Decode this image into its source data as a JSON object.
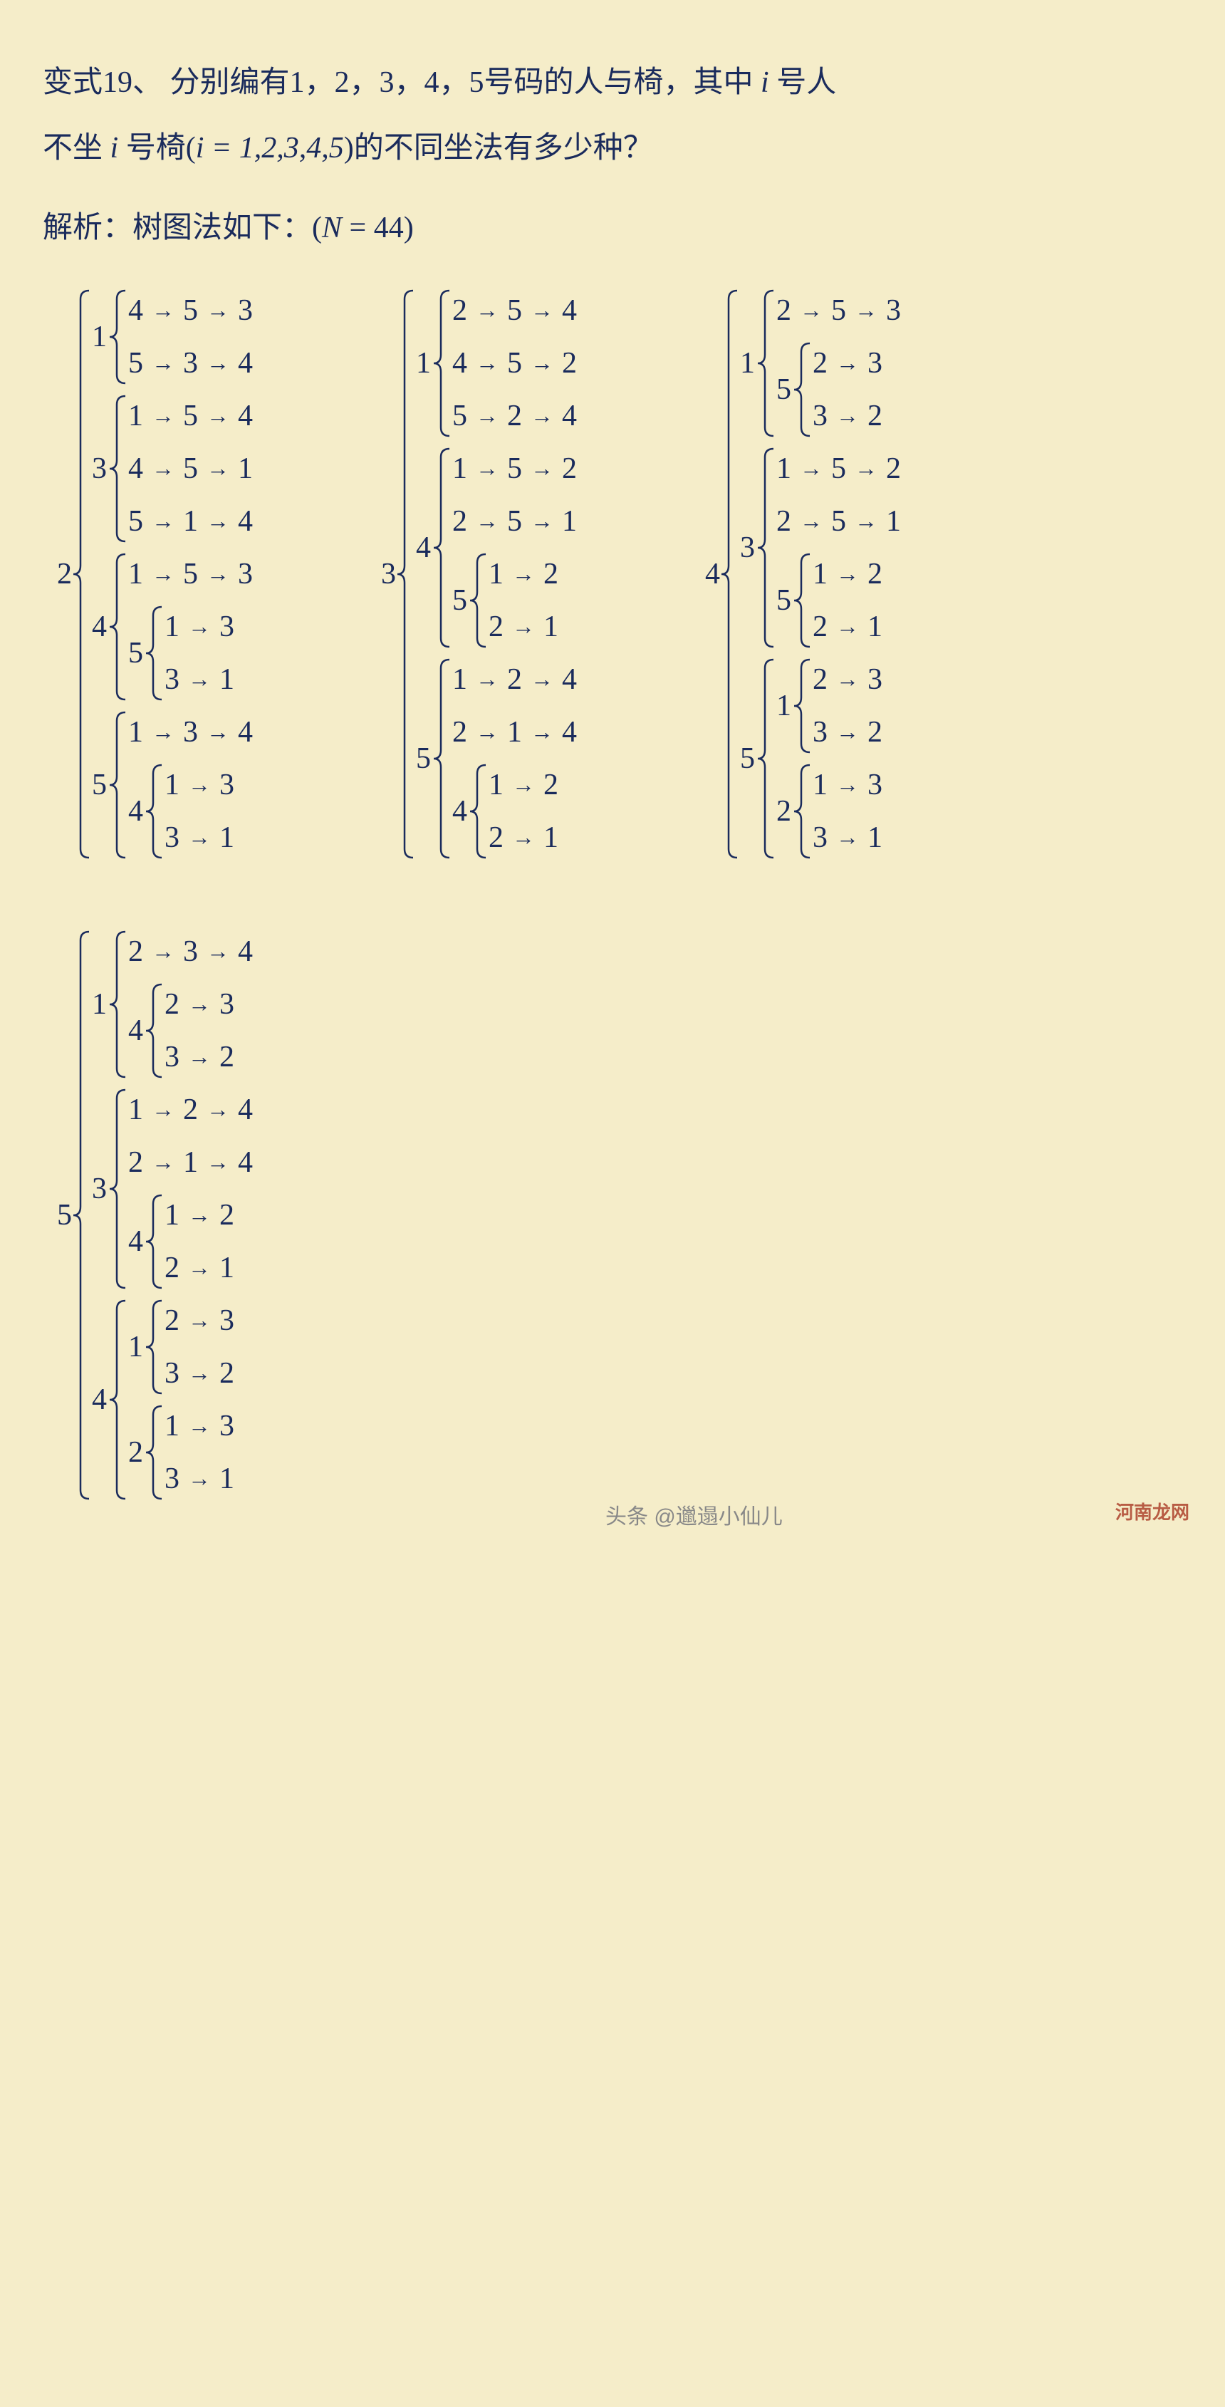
{
  "problem": {
    "prefix": "变式19、  分别编有1，2，3，4，5号码的人与椅，其中",
    "i_var": "i",
    "mid1": "号人",
    "line2_pre": "不坐",
    "line2_mid": "号椅",
    "paren_content": "i = 1,2,3,4,5",
    "line2_end": "的不同坐法有多少种？"
  },
  "solution": {
    "prefix": "解析：树图法如下：",
    "result_var": "N",
    "result_eq": " = 44"
  },
  "colors": {
    "bg": "#f5edc9",
    "text": "#1a2b5c",
    "brace": "#1a2b5c"
  },
  "trees": [
    {
      "root": "2",
      "branches": [
        {
          "label": "1",
          "children": [
            {
              "seq": [
                "4",
                "5",
                "3"
              ]
            },
            {
              "seq": [
                "5",
                "3",
                "4"
              ]
            }
          ]
        },
        {
          "label": "3",
          "children": [
            {
              "seq": [
                "1",
                "5",
                "4"
              ]
            },
            {
              "seq": [
                "4",
                "5",
                "1"
              ]
            },
            {
              "seq": [
                "5",
                "1",
                "4"
              ]
            }
          ]
        },
        {
          "label": "4",
          "children": [
            {
              "seq": [
                "1",
                "5",
                "3"
              ]
            },
            {
              "label": "5",
              "children": [
                {
                  "seq": [
                    "1",
                    "3"
                  ]
                },
                {
                  "seq": [
                    "3",
                    "1"
                  ]
                }
              ]
            }
          ]
        },
        {
          "label": "5",
          "children": [
            {
              "seq": [
                "1",
                "3",
                "4"
              ]
            },
            {
              "label": "4",
              "children": [
                {
                  "seq": [
                    "1",
                    "3"
                  ]
                },
                {
                  "seq": [
                    "3",
                    "1"
                  ]
                }
              ]
            }
          ]
        }
      ]
    },
    {
      "root": "3",
      "branches": [
        {
          "label": "1",
          "children": [
            {
              "seq": [
                "2",
                "5",
                "4"
              ]
            },
            {
              "seq": [
                "4",
                "5",
                "2"
              ]
            },
            {
              "seq": [
                "5",
                "2",
                "4"
              ]
            }
          ]
        },
        {
          "label": "4",
          "children": [
            {
              "seq": [
                "1",
                "5",
                "2"
              ]
            },
            {
              "seq": [
                "2",
                "5",
                "1"
              ]
            },
            {
              "label": "5",
              "children": [
                {
                  "seq": [
                    "1",
                    "2"
                  ]
                },
                {
                  "seq": [
                    "2",
                    "1"
                  ]
                }
              ]
            }
          ]
        },
        {
          "label": "5",
          "children": [
            {
              "seq": [
                "1",
                "2",
                "4"
              ]
            },
            {
              "seq": [
                "2",
                "1",
                "4"
              ]
            },
            {
              "label": "4",
              "children": [
                {
                  "seq": [
                    "1",
                    "2"
                  ]
                },
                {
                  "seq": [
                    "2",
                    "1"
                  ]
                }
              ]
            }
          ]
        }
      ]
    },
    {
      "root": "4",
      "branches": [
        {
          "label": "1",
          "children": [
            {
              "seq": [
                "2",
                "5",
                "3"
              ]
            },
            {
              "label": "5",
              "children": [
                {
                  "seq": [
                    "2",
                    "3"
                  ]
                },
                {
                  "seq": [
                    "3",
                    "2"
                  ]
                }
              ]
            }
          ]
        },
        {
          "label": "3",
          "children": [
            {
              "seq": [
                "1",
                "5",
                "2"
              ]
            },
            {
              "seq": [
                "2",
                "5",
                "1"
              ]
            },
            {
              "label": "5",
              "children": [
                {
                  "seq": [
                    "1",
                    "2"
                  ]
                },
                {
                  "seq": [
                    "2",
                    "1"
                  ]
                }
              ]
            }
          ]
        },
        {
          "label": "5",
          "children": [
            {
              "label": "1",
              "children": [
                {
                  "seq": [
                    "2",
                    "3"
                  ]
                },
                {
                  "seq": [
                    "3",
                    "2"
                  ]
                }
              ]
            },
            {
              "label": "2",
              "children": [
                {
                  "seq": [
                    "1",
                    "3"
                  ]
                },
                {
                  "seq": [
                    "3",
                    "1"
                  ]
                }
              ]
            }
          ]
        }
      ]
    },
    {
      "root": "5",
      "branches": [
        {
          "label": "1",
          "children": [
            {
              "seq": [
                "2",
                "3",
                "4"
              ]
            },
            {
              "label": "4",
              "children": [
                {
                  "seq": [
                    "2",
                    "3"
                  ]
                },
                {
                  "seq": [
                    "3",
                    "2"
                  ]
                }
              ]
            }
          ]
        },
        {
          "label": "3",
          "children": [
            {
              "seq": [
                "1",
                "2",
                "4"
              ]
            },
            {
              "seq": [
                "2",
                "1",
                "4"
              ]
            },
            {
              "label": "4",
              "children": [
                {
                  "seq": [
                    "1",
                    "2"
                  ]
                },
                {
                  "seq": [
                    "2",
                    "1"
                  ]
                }
              ]
            }
          ]
        },
        {
          "label": "4",
          "children": [
            {
              "label": "1",
              "children": [
                {
                  "seq": [
                    "2",
                    "3"
                  ]
                },
                {
                  "seq": [
                    "3",
                    "2"
                  ]
                }
              ]
            },
            {
              "label": "2",
              "children": [
                {
                  "seq": [
                    "1",
                    "3"
                  ]
                },
                {
                  "seq": [
                    "3",
                    "1"
                  ]
                }
              ]
            }
          ]
        }
      ]
    }
  ],
  "watermarks": {
    "w1": "头条 @邋遢小仙儿",
    "w2": "河南龙网"
  }
}
